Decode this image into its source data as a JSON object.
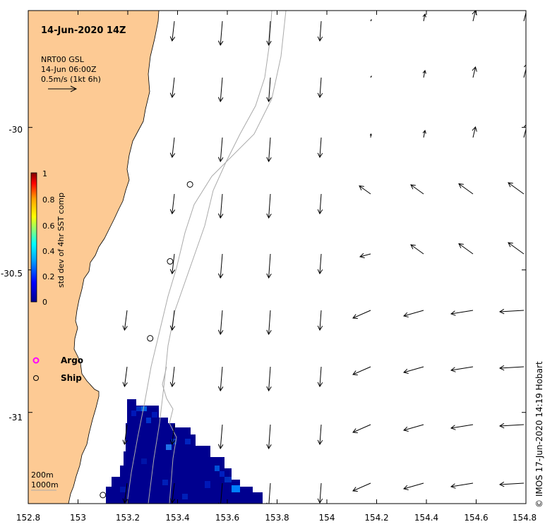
{
  "title": "14-Jun-2020 14Z",
  "current_key": {
    "source": "NRT00 GSL",
    "time": "14-Jun 06:00Z",
    "scale": "0.5m/s (1kt 6h)"
  },
  "colorbar": {
    "label": "std dev of 4hr SST comp",
    "ticks": [
      "1",
      "0.8",
      "0.6",
      "0.4",
      "0.2",
      "0"
    ],
    "colors": [
      "#00008c",
      "#0000ff",
      "#00a0ff",
      "#00ffff",
      "#80ff80",
      "#ffff00",
      "#ffa000",
      "#ff0000",
      "#800000"
    ]
  },
  "legend": {
    "argo_label": "Argo",
    "ship_label": "Ship",
    "argo_color": "#ff00ff"
  },
  "depth_key": [
    "200m",
    "1000m"
  ],
  "credit": "© IMOS 17-Jun-2020 14:19 Hobart",
  "colors": {
    "land": "#fdca94",
    "contour": "#aaaaaa",
    "sst_dark": "#00008f",
    "sst_mid": "#0018b8"
  },
  "chart_data": {
    "type": "map",
    "xlabel": "",
    "ylabel": "",
    "lon_range": [
      152.8,
      154.8
    ],
    "lat_range": [
      -31.32,
      -29.59
    ],
    "x_ticks": [
      "152.8",
      "153",
      "153.2",
      "153.4",
      "153.6",
      "153.8",
      "154",
      "154.2",
      "154.4",
      "154.6",
      "154.8"
    ],
    "y_ticks": [
      "-30",
      "-30.5",
      "-31"
    ],
    "ship_positions": [
      [
        153.45,
        -30.2
      ],
      [
        153.37,
        -30.47
      ],
      [
        153.29,
        -30.74
      ],
      [
        153.1,
        -31.29
      ]
    ],
    "argo_positions": []
  }
}
